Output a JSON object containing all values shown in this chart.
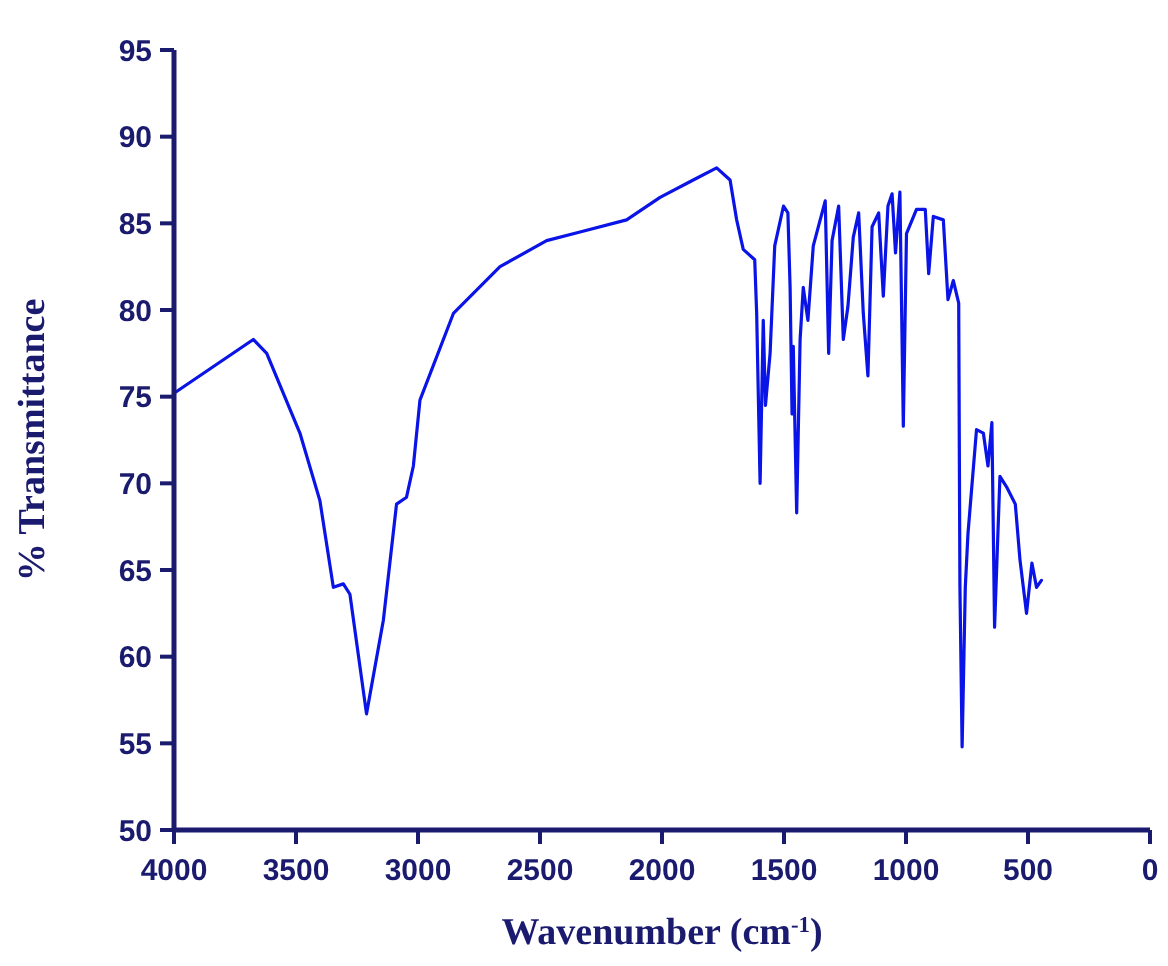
{
  "chart_data": {
    "type": "line",
    "xlabel": "Wavenumber (cm$^{-1}$)",
    "ylabel": "% Transmittance",
    "xlim": [
      4000,
      0
    ],
    "xticks": [
      4000,
      3500,
      3000,
      2500,
      2000,
      1500,
      1000,
      500,
      0
    ],
    "ylim": [
      50,
      95
    ],
    "yticks": [
      50,
      55,
      60,
      65,
      70,
      75,
      80,
      85,
      90,
      95
    ],
    "grid": false,
    "marker": "none",
    "line_style": "solid",
    "series": [
      {
        "color": "#0a14e6",
        "x": [
          4000,
          3675,
          3620,
          3484,
          3402,
          3347,
          3306,
          3279,
          3211,
          3142,
          3088,
          3047,
          3019,
          2992,
          2855,
          2664,
          2473,
          2336,
          2145,
          2008,
          1872,
          1776,
          1721,
          1694,
          1667,
          1620,
          1612,
          1598,
          1585,
          1576,
          1557,
          1538,
          1502,
          1484,
          1475,
          1467,
          1462,
          1448,
          1434,
          1421,
          1402,
          1380,
          1331,
          1317,
          1303,
          1276,
          1257,
          1238,
          1216,
          1194,
          1175,
          1156,
          1139,
          1112,
          1093,
          1074,
          1057,
          1043,
          1025,
          1011,
          998,
          957,
          921,
          907,
          888,
          847,
          828,
          806,
          784,
          779,
          770,
          757,
          746,
          711,
          683,
          664,
          648,
          637,
          615,
          588,
          552,
          533,
          506,
          484,
          465,
          445
        ],
        "values": [
          75.2,
          78.3,
          77.5,
          72.9,
          69.0,
          64.0,
          64.2,
          63.6,
          56.7,
          62.1,
          68.8,
          69.2,
          71.0,
          74.8,
          79.8,
          82.5,
          84.0,
          84.5,
          85.2,
          86.5,
          87.5,
          88.2,
          87.5,
          85.2,
          83.5,
          82.9,
          79.8,
          70.0,
          79.4,
          74.5,
          77.5,
          83.7,
          86.0,
          85.6,
          81.3,
          74.0,
          77.9,
          68.3,
          78.3,
          81.3,
          79.4,
          83.7,
          86.3,
          77.5,
          84.0,
          86.0,
          78.3,
          80.2,
          84.2,
          85.6,
          79.8,
          76.2,
          84.8,
          85.6,
          80.8,
          86.0,
          86.7,
          83.3,
          86.8,
          73.3,
          84.4,
          85.8,
          85.8,
          82.1,
          85.4,
          85.2,
          80.6,
          81.7,
          80.4,
          64.0,
          54.8,
          64.0,
          67.1,
          73.1,
          72.9,
          71.0,
          73.5,
          61.7,
          70.4,
          69.8,
          68.8,
          65.6,
          62.5,
          65.4,
          64.0,
          64.4
        ]
      }
    ]
  }
}
